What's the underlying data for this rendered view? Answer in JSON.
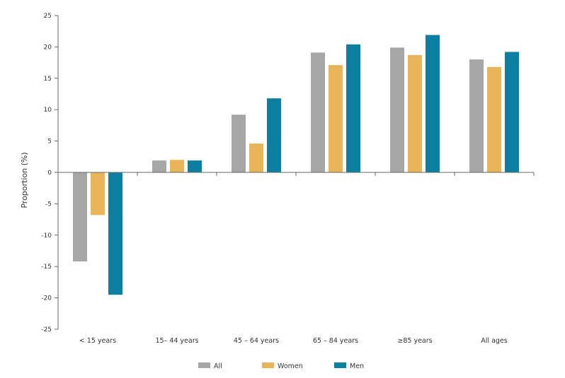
{
  "chart_data": {
    "type": "bar",
    "title": "",
    "xlabel": "",
    "ylabel": "Proportion (%)",
    "ylim": [
      -25,
      25
    ],
    "yticks": [
      25,
      20,
      15,
      10,
      5,
      0,
      -5,
      -10,
      -15,
      -20,
      -25
    ],
    "categories": [
      "< 15 years",
      "15– 44 years",
      "45 – 64 years",
      "65 – 84 years",
      "≥85 years",
      "All ages"
    ],
    "series": [
      {
        "name": "All",
        "color": "#a6a6a6",
        "values": [
          -14.2,
          1.9,
          9.2,
          19.1,
          19.9,
          18.0
        ]
      },
      {
        "name": "Women",
        "color": "#e8b45a",
        "values": [
          -6.8,
          2.0,
          4.6,
          17.1,
          18.7,
          16.8
        ]
      },
      {
        "name": "Men",
        "color": "#0a7fa0",
        "values": [
          -19.5,
          1.9,
          11.8,
          20.4,
          21.9,
          19.2
        ]
      }
    ],
    "grid": false,
    "legend": "bottom"
  }
}
